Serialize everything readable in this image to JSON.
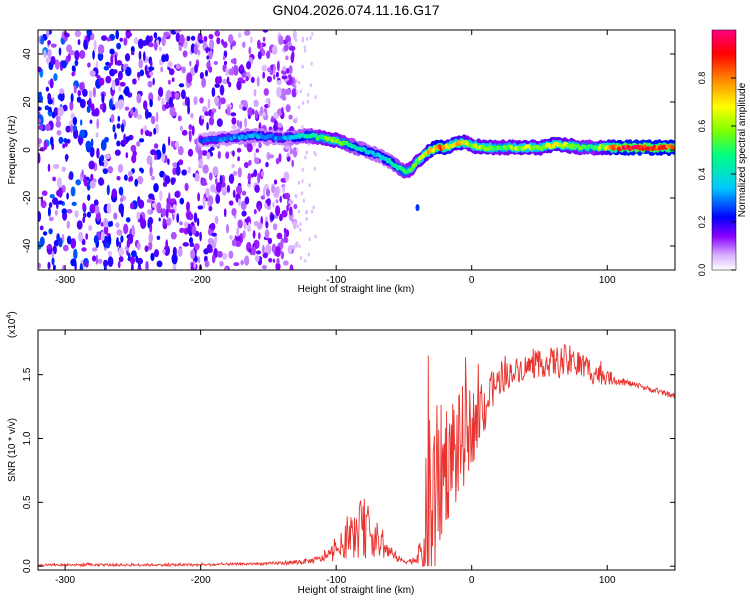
{
  "page": {
    "title": "GN04.2026.074.11.16.G17"
  },
  "chart_data": [
    {
      "type": "heatmap",
      "title": "GN04.2026.074.11.16.G17",
      "xlabel": "Height of straight line (km)",
      "ylabel": "Frequency (Hz)",
      "xlim": [
        -320,
        150
      ],
      "ylim": [
        -50,
        50
      ],
      "x_ticks": [
        -300,
        -200,
        -100,
        0,
        100
      ],
      "y_ticks": [
        -40,
        -20,
        0,
        20,
        40
      ],
      "colorbar": {
        "label": "Normalized spectral amplitude",
        "range": [
          0.0,
          1.0
        ],
        "ticks": [
          0.0,
          0.2,
          0.4,
          0.6,
          0.8
        ],
        "tick_labels": [
          "0.0",
          "0.2",
          "0.4",
          "0.6",
          "0.8"
        ],
        "colors": [
          "#ffffff",
          "#d9b3ff",
          "#8a00ff",
          "#0000ff",
          "#00c8ff",
          "#00ff80",
          "#80ff00",
          "#ffff00",
          "#ff8000",
          "#ff0000",
          "#ff0080"
        ]
      },
      "ridge": {
        "x": [
          -200,
          -180,
          -160,
          -140,
          -120,
          -110,
          -100,
          -90,
          -80,
          -70,
          -60,
          -55,
          -50,
          -45,
          -40,
          -35,
          -30,
          -25,
          -20,
          -15,
          -10,
          -5,
          0,
          10,
          20,
          30,
          40,
          50,
          60,
          70,
          80,
          90,
          100,
          110,
          120,
          130,
          140,
          150
        ],
        "y": [
          4,
          5,
          6,
          5,
          6,
          5,
          4,
          2,
          0,
          -2,
          -5,
          -7,
          -9,
          -8,
          -5,
          -2,
          0,
          1,
          1,
          2,
          3,
          3,
          2,
          1,
          1,
          1,
          1,
          1,
          2,
          2,
          1,
          1,
          1,
          1,
          1,
          1,
          1,
          1
        ],
        "amplitude": [
          0.25,
          0.3,
          0.35,
          0.3,
          0.45,
          0.55,
          0.6,
          0.45,
          0.4,
          0.35,
          0.4,
          0.45,
          0.5,
          0.55,
          0.6,
          0.65,
          0.75,
          0.85,
          0.8,
          0.7,
          0.75,
          0.65,
          0.6,
          0.65,
          0.55,
          0.6,
          0.65,
          0.6,
          0.7,
          0.65,
          0.55,
          0.5,
          0.7,
          0.9,
          0.95,
          0.95,
          0.9,
          0.9
        ]
      },
      "noise_region": {
        "xlim": [
          -320,
          -130
        ],
        "amplitude_range": [
          0.05,
          0.3
        ]
      },
      "stray_points": [
        {
          "x": -147,
          "y": -28,
          "amplitude": 0.2
        },
        {
          "x": -40,
          "y": -24,
          "amplitude": 0.25
        }
      ]
    },
    {
      "type": "line",
      "title": "",
      "xlabel": "Height of straight line (km)",
      "ylabel": "SNR (10 * v/v)",
      "y_multiplier_label": "(x10",
      "y_multiplier_exponent": "4",
      "xlim": [
        -320,
        150
      ],
      "ylim": [
        -0.03,
        1.85
      ],
      "x_ticks": [
        -300,
        -200,
        -100,
        0,
        100
      ],
      "y_ticks": [
        0.0,
        0.5,
        1.0,
        1.5
      ],
      "y_tick_labels": [
        "0.0",
        "0.5",
        "1.0",
        "1.5"
      ],
      "grid": false,
      "color": "#e8332f",
      "x": [
        -320,
        -250,
        -200,
        -150,
        -130,
        -120,
        -110,
        -100,
        -90,
        -80,
        -75,
        -70,
        -65,
        -60,
        -55,
        -50,
        -45,
        -40,
        -35,
        -32,
        -30,
        -28,
        -25,
        -20,
        -15,
        -10,
        -5,
        0,
        5,
        10,
        15,
        20,
        30,
        40,
        50,
        60,
        70,
        80,
        90,
        100,
        110,
        120,
        130,
        140,
        150
      ],
      "y": [
        0.01,
        0.01,
        0.01,
        0.02,
        0.03,
        0.04,
        0.06,
        0.12,
        0.22,
        0.3,
        0.28,
        0.2,
        0.15,
        0.1,
        0.06,
        0.04,
        0.04,
        0.06,
        0.12,
        0.5,
        0.35,
        0.45,
        0.65,
        0.8,
        0.9,
        0.9,
        1.05,
        1.1,
        1.15,
        1.25,
        1.38,
        1.45,
        1.52,
        1.56,
        1.58,
        1.6,
        1.6,
        1.58,
        1.52,
        1.48,
        1.45,
        1.42,
        1.39,
        1.36,
        1.33
      ],
      "noise_amplitude": [
        0.01,
        0.01,
        0.01,
        0.01,
        0.02,
        0.02,
        0.03,
        0.08,
        0.15,
        0.25,
        0.2,
        0.15,
        0.1,
        0.05,
        0.03,
        0.02,
        0.02,
        0.05,
        0.2,
        1.2,
        0.9,
        0.9,
        0.6,
        0.5,
        0.5,
        0.45,
        0.4,
        0.3,
        0.3,
        0.2,
        0.15,
        0.12,
        0.1,
        0.1,
        0.1,
        0.12,
        0.14,
        0.12,
        0.1,
        0.06,
        0.03,
        0.02,
        0.02,
        0.02,
        0.02
      ]
    }
  ]
}
